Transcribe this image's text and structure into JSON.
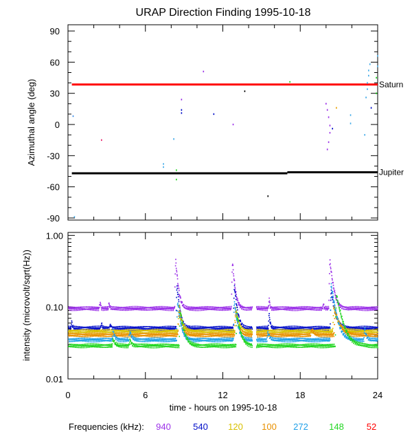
{
  "chart_data": [
    {
      "type": "scatter",
      "title": "URAP Direction Finding  1995-10-18",
      "ylabel": "Azimuthal angle (deg)",
      "xlim": [
        0,
        24
      ],
      "ylim": [
        -92,
        96
      ],
      "y_ticks": [
        90,
        60,
        30,
        0,
        -30,
        -60,
        -90
      ],
      "y_tick_labels": [
        "90",
        "60",
        "30",
        "0",
        "-30",
        "-60",
        "-90"
      ],
      "reference_lines": [
        {
          "label": "Saturn",
          "color": "#ff0000",
          "segments": [
            {
              "x0": 0.3,
              "x1": 24,
              "y": 38.5
            }
          ]
        },
        {
          "label": "Jupiter",
          "color": "#000000",
          "segments": [
            {
              "x0": 0.3,
              "x1": 17,
              "y": -47
            },
            {
              "x0": 17,
              "x1": 24,
              "y": -46
            }
          ]
        }
      ],
      "points": [
        {
          "x": 0.4,
          "y": 8,
          "color": "#3e8ee8"
        },
        {
          "x": 0.5,
          "y": -89,
          "color": "#3ea9e8"
        },
        {
          "x": 2.6,
          "y": -15,
          "color": "#e81e6a"
        },
        {
          "x": 7.4,
          "y": -38,
          "color": "#3ea9e8"
        },
        {
          "x": 7.4,
          "y": -41,
          "color": "#3ea9e8"
        },
        {
          "x": 8.2,
          "y": -14,
          "color": "#3ea9e8"
        },
        {
          "x": 8.4,
          "y": -44,
          "color": "#22d622"
        },
        {
          "x": 8.4,
          "y": -53,
          "color": "#22d622"
        },
        {
          "x": 8.8,
          "y": 24,
          "color": "#9b30e8"
        },
        {
          "x": 8.8,
          "y": 14,
          "color": "#000cc8"
        },
        {
          "x": 8.8,
          "y": 11,
          "color": "#000cc8"
        },
        {
          "x": 10.5,
          "y": 51,
          "color": "#9b30e8"
        },
        {
          "x": 11.3,
          "y": 10,
          "color": "#000cc8"
        },
        {
          "x": 12.8,
          "y": 0,
          "color": "#9b30e8"
        },
        {
          "x": 13.7,
          "y": 32,
          "color": "#000000"
        },
        {
          "x": 15.5,
          "y": -69,
          "color": "#000000"
        },
        {
          "x": 17.2,
          "y": 41,
          "color": "#22d622"
        },
        {
          "x": 20.0,
          "y": 20,
          "color": "#9b30e8"
        },
        {
          "x": 20.1,
          "y": 14,
          "color": "#9b30e8"
        },
        {
          "x": 20.2,
          "y": 7,
          "color": "#9b30e8"
        },
        {
          "x": 20.3,
          "y": -1,
          "color": "#9b30e8"
        },
        {
          "x": 20.3,
          "y": -8,
          "color": "#9b30e8"
        },
        {
          "x": 20.2,
          "y": -17,
          "color": "#9b30e8"
        },
        {
          "x": 20.1,
          "y": -24,
          "color": "#9b30e8"
        },
        {
          "x": 20.5,
          "y": -4,
          "color": "#000cc8"
        },
        {
          "x": 20.8,
          "y": 16,
          "color": "#e8a000"
        },
        {
          "x": 21.9,
          "y": 9,
          "color": "#3ea9e8"
        },
        {
          "x": 21.9,
          "y": 1,
          "color": "#3ea9e8"
        },
        {
          "x": 23.0,
          "y": -10,
          "color": "#3ea9e8"
        },
        {
          "x": 23.1,
          "y": 26,
          "color": "#3ea9e8"
        },
        {
          "x": 23.2,
          "y": 34,
          "color": "#3ea9e8"
        },
        {
          "x": 23.2,
          "y": 40,
          "color": "#3ea9e8"
        },
        {
          "x": 23.3,
          "y": 47,
          "color": "#3ea9e8"
        },
        {
          "x": 23.3,
          "y": 52,
          "color": "#3ea9e8"
        },
        {
          "x": 23.4,
          "y": 58,
          "color": "#3ea9e8"
        },
        {
          "x": 23.5,
          "y": 16,
          "color": "#000cc8"
        },
        {
          "x": 23.9,
          "y": 30,
          "color": "#22d622"
        },
        {
          "x": 23.9,
          "y": 45,
          "color": "#22d622"
        },
        {
          "x": 24.0,
          "y": 56,
          "color": "#3ea9e8"
        },
        {
          "x": 24.0,
          "y": 66,
          "color": "#3ea9e8"
        }
      ]
    },
    {
      "type": "line",
      "title": "",
      "xlabel": "time - hours on 1995-10-18",
      "ylabel": "intensity (microvolt/sqrt(Hz))",
      "yscale": "log",
      "xlim": [
        0,
        24
      ],
      "ylim": [
        0.01,
        1.1
      ],
      "x_ticks": [
        0,
        6,
        12,
        18,
        24
      ],
      "x_tick_labels": [
        "0",
        "6",
        "12",
        "18",
        "24"
      ],
      "y_ticks": [
        1.0,
        0.1,
        0.01
      ],
      "y_tick_labels": [
        "1.00",
        "0.10",
        "0.01"
      ],
      "data_gap_hours": [
        14.3,
        14.6
      ],
      "series": [
        {
          "name": "940",
          "color": "#9b30e8",
          "baseline": 0.096,
          "bursts": [
            {
              "t": 2.5,
              "peak": 0.12,
              "width": 0.04
            },
            {
              "t": 3.2,
              "peak": 0.115,
              "width": 0.04
            },
            {
              "t": 8.35,
              "peak": 0.45,
              "width": 0.16
            },
            {
              "t": 12.75,
              "peak": 0.42,
              "width": 0.16
            },
            {
              "t": 15.6,
              "peak": 0.13,
              "width": 0.05
            },
            {
              "t": 19.8,
              "peak": 0.11,
              "width": 0.05
            },
            {
              "t": 20.3,
              "peak": 0.44,
              "width": 0.22
            }
          ]
        },
        {
          "name": "540",
          "color": "#000cc8",
          "baseline": 0.051,
          "bursts": [
            {
              "t": 0.3,
              "peak": 0.062,
              "width": 0.05
            },
            {
              "t": 2.6,
              "peak": 0.06,
              "width": 0.05
            },
            {
              "t": 3.3,
              "peak": 0.058,
              "width": 0.05
            },
            {
              "t": 8.45,
              "peak": 0.2,
              "width": 0.18
            },
            {
              "t": 12.9,
              "peak": 0.2,
              "width": 0.18
            },
            {
              "t": 15.6,
              "peak": 0.08,
              "width": 0.07
            },
            {
              "t": 20.4,
              "peak": 0.17,
              "width": 0.24
            }
          ]
        },
        {
          "name": "120",
          "color": "#d8c000",
          "baseline": 0.046,
          "bursts": [
            {
              "t": 8.6,
              "peak": 0.11,
              "width": 0.2
            },
            {
              "t": 13.0,
              "peak": 0.1,
              "width": 0.2
            },
            {
              "t": 20.6,
              "peak": 0.1,
              "width": 0.3
            }
          ]
        },
        {
          "name": "100",
          "color": "#e89000",
          "baseline": 0.041,
          "bursts": [
            {
              "t": 8.6,
              "peak": 0.09,
              "width": 0.2
            },
            {
              "t": 13.0,
              "peak": 0.085,
              "width": 0.2
            },
            {
              "t": 18.9,
              "peak": 0.05,
              "width": 0.15
            },
            {
              "t": 20.7,
              "peak": 0.09,
              "width": 0.35
            }
          ]
        },
        {
          "name": "272",
          "color": "#20a0e8",
          "baseline": 0.035,
          "bursts": [
            {
              "t": 3.5,
              "peak": 0.047,
              "width": 0.14
            },
            {
              "t": 4.8,
              "peak": 0.046,
              "width": 0.14
            },
            {
              "t": 8.5,
              "peak": 0.12,
              "width": 0.2
            },
            {
              "t": 12.9,
              "peak": 0.12,
              "width": 0.2
            },
            {
              "t": 15.5,
              "peak": 0.045,
              "width": 0.14
            },
            {
              "t": 20.4,
              "peak": 0.21,
              "width": 0.3
            },
            {
              "t": 23.0,
              "peak": 0.05,
              "width": 0.12
            }
          ]
        },
        {
          "name": "148",
          "color": "#22d622",
          "baseline": 0.029,
          "bursts": [
            {
              "t": 3.5,
              "peak": 0.036,
              "width": 0.14
            },
            {
              "t": 4.8,
              "peak": 0.035,
              "width": 0.14
            },
            {
              "t": 8.7,
              "peak": 0.09,
              "width": 0.25
            },
            {
              "t": 13.1,
              "peak": 0.08,
              "width": 0.25
            },
            {
              "t": 20.8,
              "peak": 0.15,
              "width": 0.4
            }
          ]
        },
        {
          "name": "52",
          "color": "#ff0000",
          "baseline": null,
          "bursts": []
        }
      ],
      "legend": {
        "label": "Frequencies (kHz):",
        "placement": "bottom"
      }
    }
  ]
}
